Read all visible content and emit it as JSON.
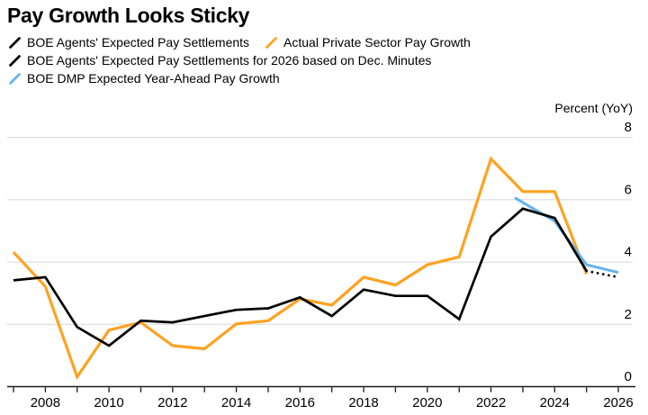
{
  "title": "Pay Growth Looks Sticky",
  "unit_label": "Percent (YoY)",
  "colors": {
    "black": "#000000",
    "orange": "#ffa221",
    "blue": "#63b3f0",
    "gridline": "#d7d7d7",
    "axis": "#1a1a1a",
    "text": "#000000"
  },
  "legend": {
    "rows": [
      [
        {
          "label": "BOE Agents' Expected Pay Settlements",
          "color": "#000000"
        },
        {
          "label": "Actual Private Sector Pay Growth",
          "color": "#ffa221"
        }
      ],
      [
        {
          "label": "BOE Agents' Expected Pay Settlements for 2026 based on Dec. Minutes",
          "color": "#000000"
        }
      ],
      [
        {
          "label": "BOE DMP Expected Year-Ahead Pay Growth",
          "color": "#63b3f0"
        }
      ]
    ]
  },
  "axis": {
    "y_ticks": [
      0,
      2,
      4,
      6,
      8
    ],
    "x_tick_years": [
      2007,
      2008,
      2009,
      2010,
      2011,
      2012,
      2013,
      2014,
      2015,
      2016,
      2017,
      2018,
      2019,
      2020,
      2021,
      2022,
      2023,
      2024,
      2025,
      2026
    ],
    "x_labeled_years": [
      2008,
      2010,
      2012,
      2014,
      2016,
      2018,
      2020,
      2022,
      2024,
      2026
    ]
  },
  "chart_data": {
    "type": "line",
    "title": "Pay Growth Looks Sticky",
    "ylabel": "Percent (YoY)",
    "ylim": [
      0,
      8
    ],
    "xlim": [
      2007,
      2026
    ],
    "grid": "horizontal",
    "legend_position": "top-left",
    "series": [
      {
        "id": "actual-pay-growth",
        "name": "Actual Private Sector Pay Growth",
        "color": "#ffa221",
        "style": "solid",
        "width": 3.2,
        "x": [
          2007,
          2008,
          2009,
          2010,
          2011,
          2012,
          2013,
          2014,
          2015,
          2016,
          2017,
          2018,
          2019,
          2020,
          2021,
          2022,
          2023,
          2024,
          2025
        ],
        "values": [
          4.3,
          3.2,
          0.3,
          1.8,
          2.05,
          1.3,
          1.2,
          2.0,
          2.1,
          2.8,
          2.6,
          3.5,
          3.25,
          3.9,
          4.15,
          7.3,
          6.25,
          6.25,
          3.6
        ]
      },
      {
        "id": "dmp-expected",
        "name": "BOE DMP Expected Year-Ahead Pay Growth",
        "color": "#63b3f0",
        "style": "solid",
        "width": 3,
        "x": [
          2022.75,
          2023,
          2024,
          2025,
          2026
        ],
        "values": [
          6.05,
          5.9,
          5.3,
          3.9,
          3.65
        ]
      },
      {
        "id": "agents-expected",
        "name": "BOE Agents' Expected Pay Settlements",
        "color": "#000000",
        "style": "solid",
        "width": 2.7,
        "x": [
          2007,
          2008,
          2009,
          2010,
          2011,
          2012,
          2013,
          2014,
          2015,
          2016,
          2017,
          2018,
          2019,
          2020,
          2021,
          2022,
          2023,
          2024,
          2025
        ],
        "values": [
          3.4,
          3.5,
          1.9,
          1.3,
          2.1,
          2.05,
          2.25,
          2.45,
          2.5,
          2.85,
          2.25,
          3.1,
          2.9,
          2.9,
          2.15,
          4.8,
          5.7,
          5.4,
          3.7
        ]
      },
      {
        "id": "agents-expected-2026",
        "name": "BOE Agents' Expected Pay Settlements for 2026 based on Dec. Minutes",
        "color": "#000000",
        "style": "dotted",
        "width": 2.7,
        "x": [
          2025,
          2026
        ],
        "values": [
          3.7,
          3.5
        ]
      }
    ]
  }
}
